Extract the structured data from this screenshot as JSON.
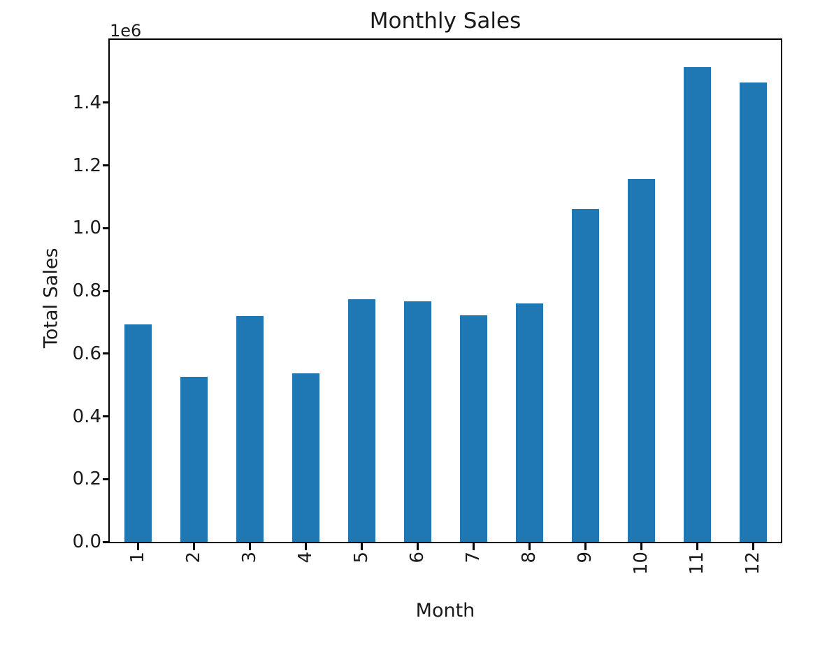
{
  "chart_data": {
    "type": "bar",
    "title": "Monthly Sales",
    "xlabel": "Month",
    "ylabel": "Total Sales",
    "y_offset_label": "1e6",
    "categories": [
      "1",
      "2",
      "3",
      "4",
      "5",
      "6",
      "7",
      "8",
      "9",
      "10",
      "11",
      "12"
    ],
    "values": [
      694000,
      526000,
      720000,
      538000,
      774000,
      767000,
      722000,
      759000,
      1060000,
      1156000,
      1513000,
      1465000
    ],
    "y_ticks": [
      0,
      200000,
      400000,
      600000,
      800000,
      1000000,
      1200000,
      1400000
    ],
    "y_tick_labels": [
      "0.0",
      "0.2",
      "0.4",
      "0.6",
      "0.8",
      "1.0",
      "1.2",
      "1.4"
    ],
    "ylim": [
      0,
      1600000
    ],
    "x_tick_rotation": 90,
    "bar_color": "#1f77b4",
    "grid": false,
    "legend": false
  }
}
